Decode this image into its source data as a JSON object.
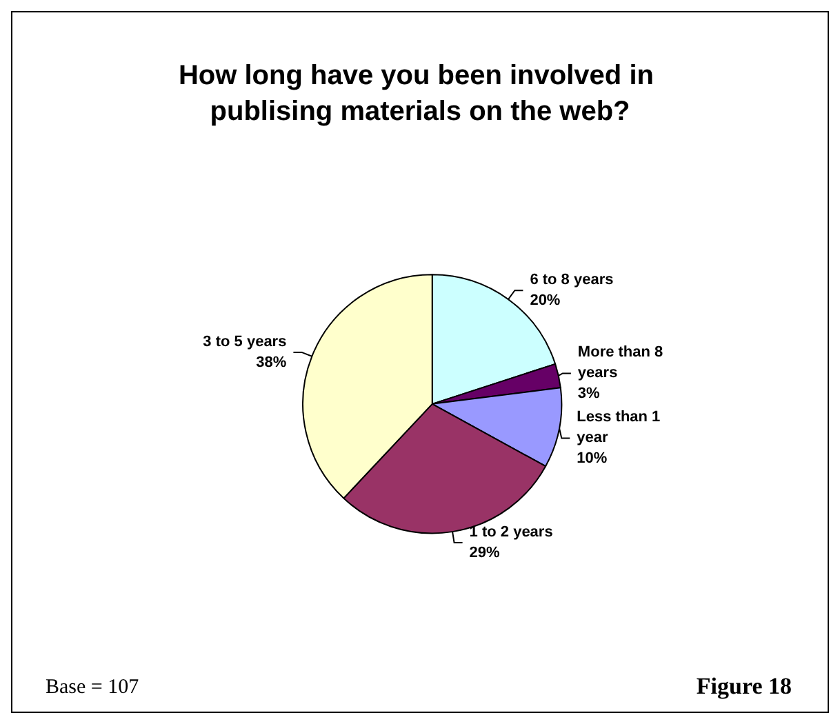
{
  "chart_data": {
    "type": "pie",
    "title": "How long have you been involved in publising materials on the web?",
    "categories": [
      "6 to 8 years",
      "More than 8 years",
      "Less than 1 year",
      "1 to 2 years",
      "3 to 5 years"
    ],
    "values": [
      20,
      3,
      10,
      29,
      38
    ],
    "colors": [
      "#ccffff",
      "#660066",
      "#9999ff",
      "#993366",
      "#ffffcc"
    ],
    "value_labels": [
      "20%",
      "3%",
      "10%",
      "29%",
      "38%"
    ],
    "legend": false,
    "annotations": [
      "Base = 107",
      "Figure 18"
    ]
  }
}
